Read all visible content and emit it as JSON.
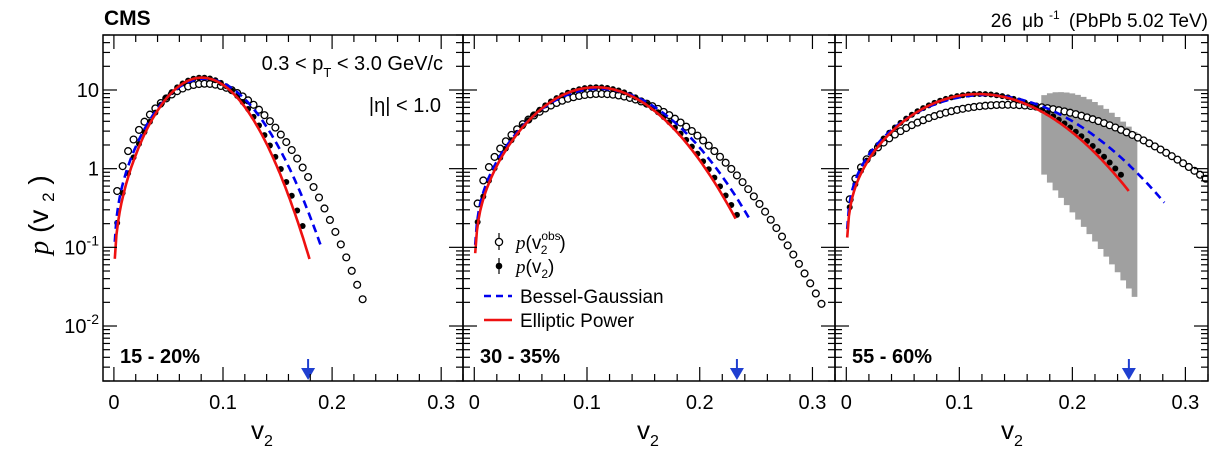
{
  "header": {
    "experiment": "CMS",
    "lumi_value": "26",
    "lumi_unit_base": "μb",
    "lumi_unit_exp": "-1",
    "lumi_system": "(PbPb 5.02 TeV)"
  },
  "ylabel_func": "p",
  "ylabel_arg": "(v",
  "ylabel_sub": "2",
  "ylabel_close": ")",
  "xlabel_base": "v",
  "xlabel_sub": "2",
  "cuts": {
    "pt_left": "0.3 < p",
    "pt_sub": "T",
    "pt_right": " < 3.0 GeV/c",
    "eta": "|η| < 1.0"
  },
  "legend": {
    "obs_func": "p",
    "obs_arg": "(v",
    "obs_sub": "2",
    "obs_sup": "obs",
    "obs_close": ")",
    "unf_func": "p",
    "unf_arg": "(v",
    "unf_sub": "2",
    "unf_close": ")",
    "bg": "Bessel-Gaussian",
    "ep": "Elliptic Power"
  },
  "colors": {
    "bg": "#0000ee",
    "ep": "#ee1111",
    "band": "#a0a0a0",
    "arrow": "#1f3fd0"
  },
  "chart_data": [
    {
      "type": "scatter",
      "panel_label": "15 - 20%",
      "xlim": [
        -0.01,
        0.32
      ],
      "ylim": [
        0.002,
        50
      ],
      "log_y": true,
      "x_ticks": [
        "0",
        "0.1",
        "0.2",
        "0.3"
      ],
      "y_ticks": [
        "10",
        "1",
        "10^-1",
        "10^-2"
      ],
      "obs_params": {
        "mean": 0.072,
        "sigma": 0.042,
        "peak": 11.5,
        "x_first": 0.003,
        "x_last": 0.23,
        "x_step": 0.005
      },
      "unf_params": {
        "mean": 0.074,
        "sigma": 0.032,
        "peak": 14,
        "x_first": 0.003,
        "x_last": 0.176,
        "x_step": 0.005
      },
      "bg_params": {
        "mean": 0.075,
        "sigma": 0.035,
        "peak": 13.5,
        "x_end": 0.19
      },
      "ep_params": {
        "mean": 0.074,
        "sigma": 0.031,
        "peak": 14,
        "x_end": 0.18
      },
      "arrow_x": 0.178,
      "band": null
    },
    {
      "type": "scatter",
      "panel_label": "30 - 35%",
      "xlim": [
        -0.01,
        0.32
      ],
      "ylim": [
        0.002,
        50
      ],
      "log_y": true,
      "x_ticks": [
        "0",
        "0.1",
        "0.2",
        "0.3"
      ],
      "y_ticks": [],
      "obs_params": {
        "mean": 0.095,
        "sigma": 0.058,
        "peak": 8.5,
        "x_first": 0.003,
        "x_last": 0.31,
        "x_step": 0.005
      },
      "unf_params": {
        "mean": 0.097,
        "sigma": 0.047,
        "peak": 10.5,
        "x_first": 0.003,
        "x_last": 0.233,
        "x_step": 0.005
      },
      "bg_params": {
        "mean": 0.098,
        "sigma": 0.05,
        "peak": 10,
        "x_end": 0.245
      },
      "ep_params": {
        "mean": 0.097,
        "sigma": 0.046,
        "peak": 10.5,
        "x_end": 0.233
      },
      "arrow_x": 0.233,
      "band": null
    },
    {
      "type": "scatter",
      "panel_label": "55 - 60%",
      "xlim": [
        -0.01,
        0.32
      ],
      "ylim": [
        0.002,
        50
      ],
      "log_y": true,
      "x_ticks": [
        "0",
        "0.1",
        "0.2",
        "0.3"
      ],
      "y_ticks": [],
      "obs_params": {
        "mean": 0.11,
        "sigma": 0.09,
        "peak": 6,
        "x_first": 0.003,
        "x_last": 0.32,
        "x_step": 0.005
      },
      "unf_params": {
        "mean": 0.101,
        "sigma": 0.06,
        "peak": 8.5,
        "x_first": 0.003,
        "x_last": 0.245,
        "x_step": 0.005
      },
      "bg_params": {
        "mean": 0.103,
        "sigma": 0.066,
        "peak": 8.2,
        "x_end": 0.282
      },
      "ep_params": {
        "mean": 0.101,
        "sigma": 0.058,
        "peak": 8.5,
        "x_end": 0.25
      },
      "arrow_x": 0.25,
      "band": {
        "x_start": 0.175,
        "x_end": 0.255,
        "width_factor_low": 5.0,
        "width_factor_high": 0.2
      }
    }
  ]
}
